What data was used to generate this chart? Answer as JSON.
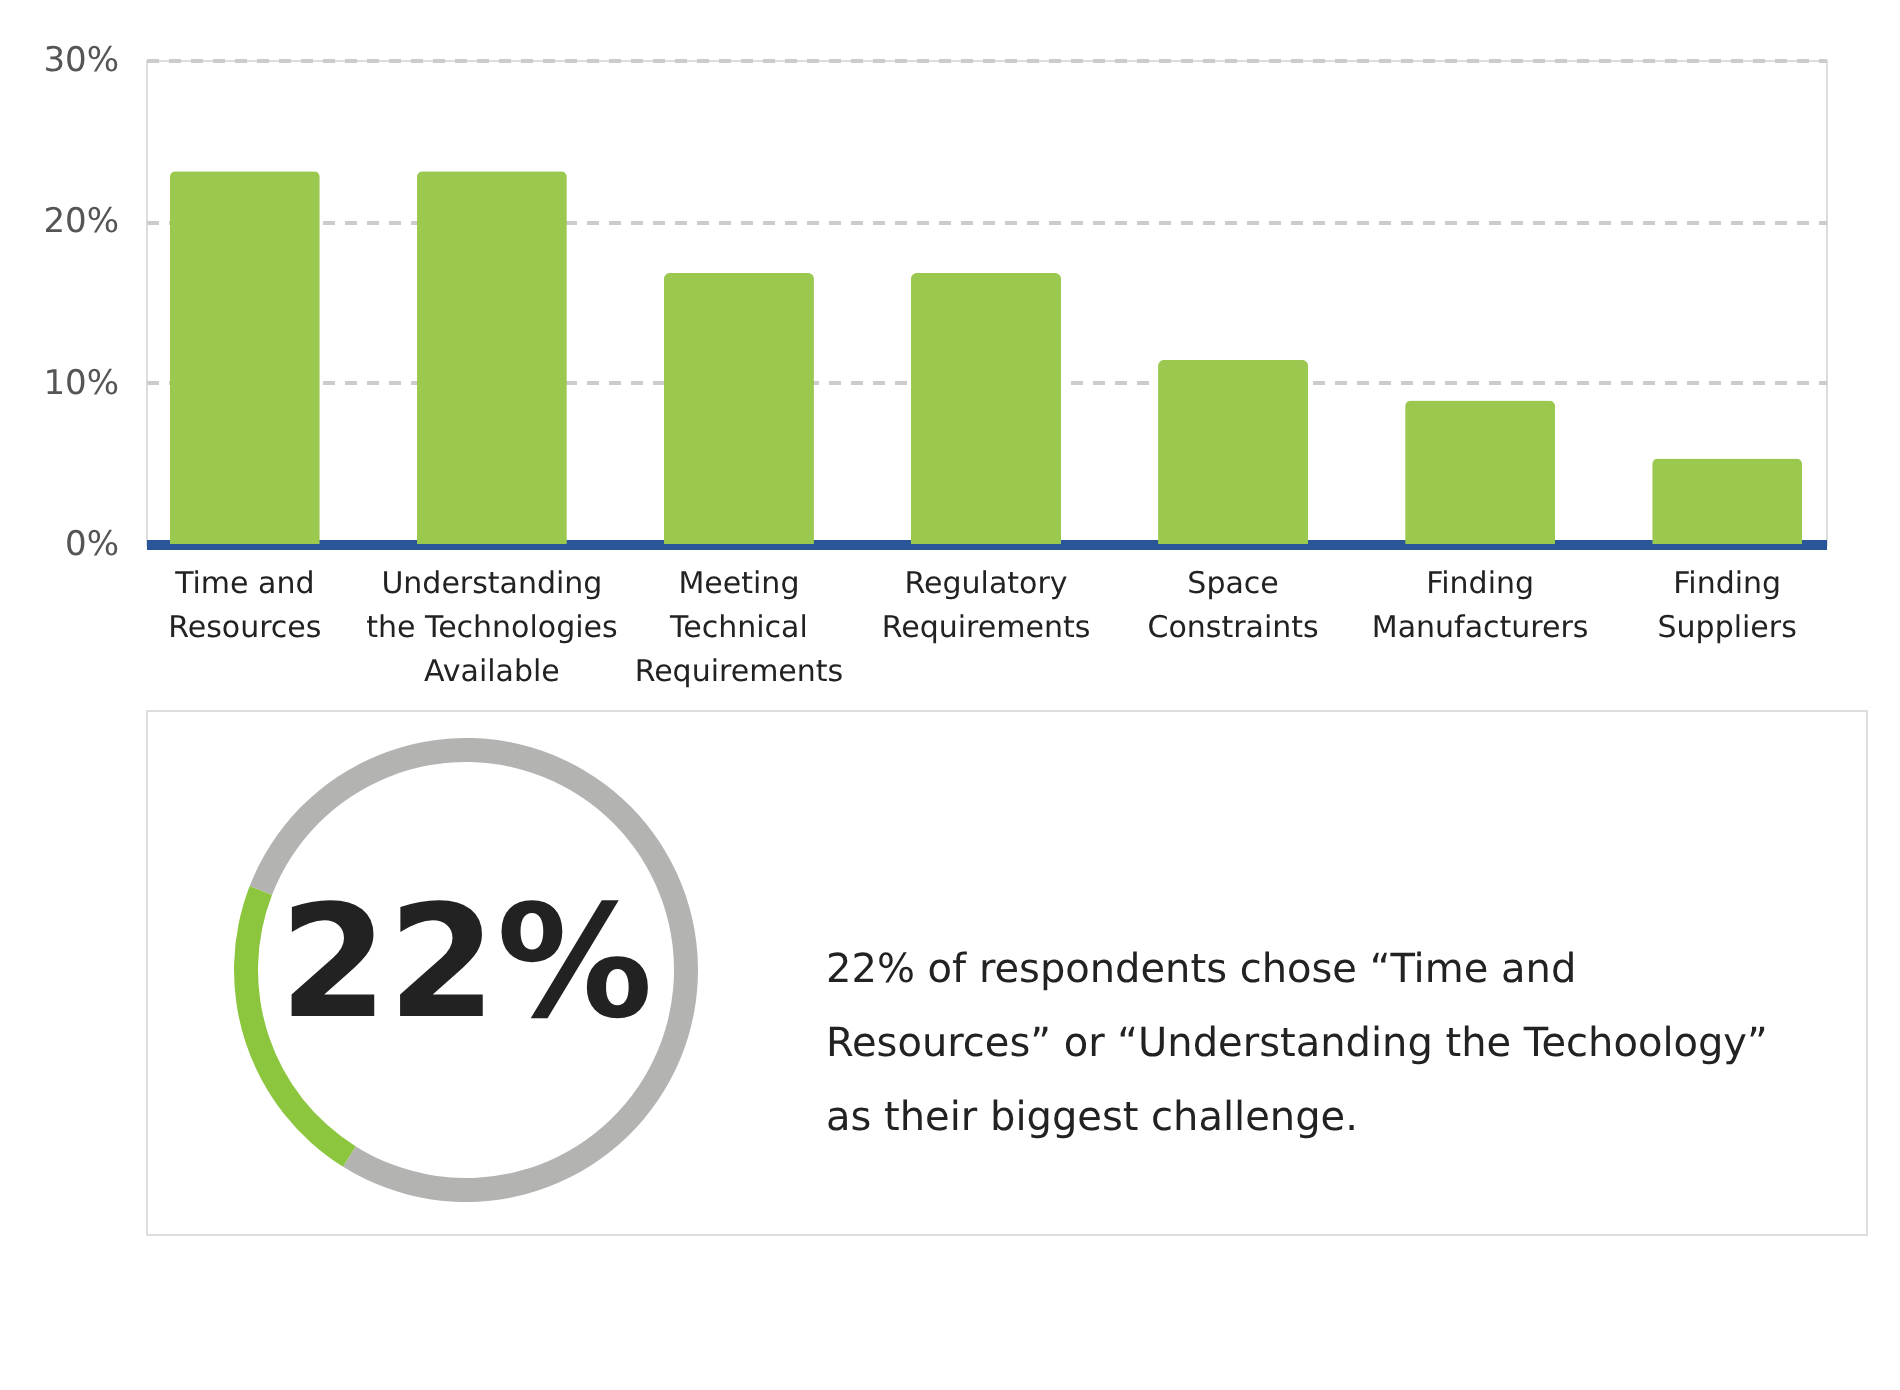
{
  "chart_data": [
    {
      "type": "bar",
      "categories": [
        "Time and\nResources",
        "Understanding\nthe Technologies\nAvailable",
        "Meeting\nTechnical\nRequirements",
        "Regulatory\nRequirements",
        "Space\nConstraints",
        "Finding\nManufacturers",
        "Finding\nSuppliers"
      ],
      "values": [
        23.1,
        23.1,
        16.8,
        16.8,
        11.4,
        8.9,
        5.3
      ],
      "color": "#9bc94f",
      "ylim": [
        0,
        30
      ],
      "yticks": [
        {
          "value": 0,
          "label": "0%"
        },
        {
          "value": 10,
          "label": "10%"
        },
        {
          "value": 20,
          "label": "20%"
        },
        {
          "value": 30,
          "label": "30%"
        }
      ],
      "grid": "y"
    },
    {
      "type": "donut",
      "categories": [
        null,
        null
      ],
      "values": [
        22,
        78
      ],
      "colors": [
        "#8cc63f",
        "#b3b3b1"
      ],
      "value_labels": [
        "22%",
        null
      ],
      "annotations": [
        "22% of respondents chose “Time and Resources” or “Understanding the Techoology” as their biggest challenge."
      ]
    }
  ]
}
